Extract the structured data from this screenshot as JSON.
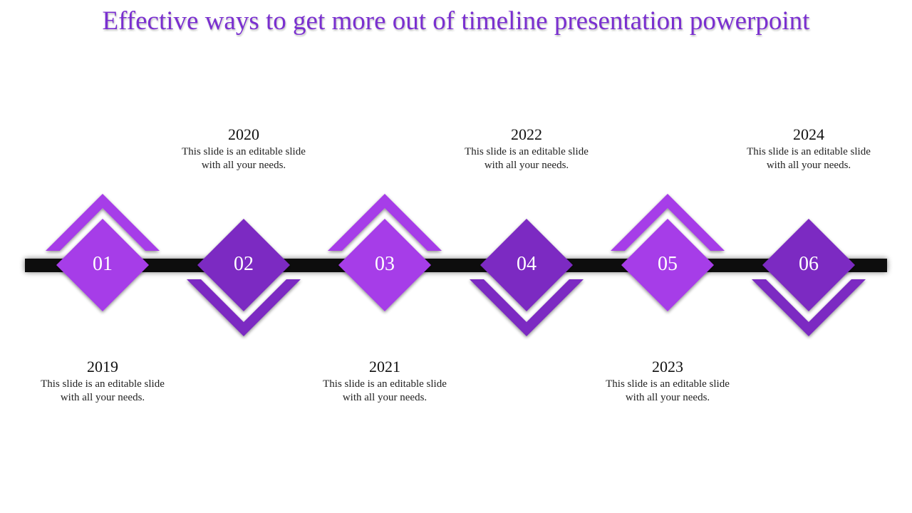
{
  "title": "Effective ways to get more out of timeline presentation powerpoint",
  "colors": {
    "title": "#7a2fd0",
    "light_purple": "#a63de8",
    "dark_purple": "#7b2bc2",
    "bar": "#111111"
  },
  "milestones": [
    {
      "number": "01",
      "year": "2019",
      "line1": "This slide is an editable slide",
      "line2": "with all your needs.",
      "text_position": "below",
      "shade": "light"
    },
    {
      "number": "02",
      "year": "2020",
      "line1": "This slide is an editable slide",
      "line2": "with all your needs.",
      "text_position": "above",
      "shade": "dark"
    },
    {
      "number": "03",
      "year": "2021",
      "line1": "This slide is an editable slide",
      "line2": "with all your needs.",
      "text_position": "below",
      "shade": "light"
    },
    {
      "number": "04",
      "year": "2022",
      "line1": "This slide is an editable slide",
      "line2": "with all your needs.",
      "text_position": "above",
      "shade": "dark"
    },
    {
      "number": "05",
      "year": "2023",
      "line1": "This slide is an editable slide",
      "line2": "with all your needs.",
      "text_position": "below",
      "shade": "light"
    },
    {
      "number": "06",
      "year": "2024",
      "line1": "This slide is an editable slide",
      "line2": "with all your needs.",
      "text_position": "above",
      "shade": "dark"
    }
  ]
}
